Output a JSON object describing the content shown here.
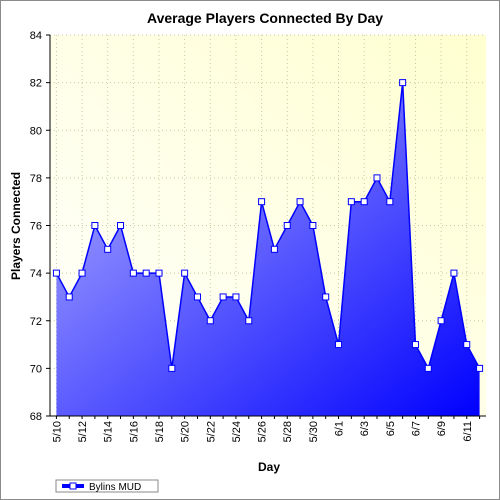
{
  "chart_data": {
    "type": "area",
    "title": "Average Players Connected By Day",
    "xlabel": "Day",
    "ylabel": "Players Connected",
    "ylim": [
      68,
      84
    ],
    "y_ticks": [
      68,
      70,
      72,
      74,
      76,
      78,
      80,
      82,
      84
    ],
    "categories": [
      "5/10",
      "5/11",
      "5/12",
      "5/13",
      "5/14",
      "5/15",
      "5/16",
      "5/17",
      "5/18",
      "5/19",
      "5/20",
      "5/21",
      "5/22",
      "5/23",
      "5/24",
      "5/25",
      "5/26",
      "5/27",
      "5/28",
      "5/29",
      "5/30",
      "5/31",
      "6/1",
      "6/2",
      "6/3",
      "6/4",
      "6/5",
      "6/6",
      "6/7",
      "6/8",
      "6/9",
      "6/10",
      "6/11",
      "6/12"
    ],
    "x_tick_labels": [
      "5/10",
      "5/12",
      "5/14",
      "5/16",
      "5/18",
      "5/20",
      "5/22",
      "5/24",
      "5/26",
      "5/28",
      "5/30",
      "6/1",
      "6/3",
      "6/5",
      "6/7",
      "6/9",
      "6/11"
    ],
    "series": [
      {
        "name": "Bylins MUD",
        "values": [
          74,
          73,
          74,
          76,
          75,
          76,
          74,
          74,
          74,
          70,
          74,
          73,
          72,
          73,
          73,
          72,
          77,
          75,
          76,
          77,
          76,
          73,
          71,
          77,
          77,
          78,
          77,
          82,
          71,
          70,
          72,
          74,
          71,
          70
        ]
      }
    ],
    "grid": true,
    "legend_position": "bottom-left",
    "colors": {
      "plot_background_top_right": "#ffffd0",
      "plot_background_bottom_left": "#ffffff",
      "area_fill_light": "#b8b8ff",
      "area_fill_dark": "#0000ff",
      "line": "#0000ff",
      "marker_fill": "#ffffff",
      "grid": "#c8c8a0",
      "axis": "#000000"
    }
  }
}
